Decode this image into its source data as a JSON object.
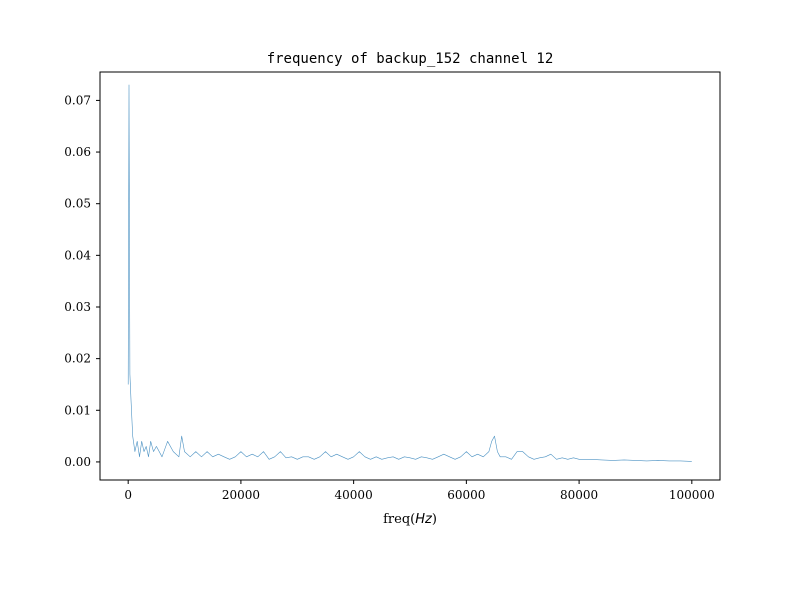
{
  "chart_data": {
    "type": "line",
    "title": "frequency of backup_152 channel 12",
    "xlabel": "freq(Hz)",
    "xlabel_parts": {
      "text": "freq",
      "math": "Hz"
    },
    "ylabel": "",
    "xlim": [
      -5000,
      105000
    ],
    "ylim": [
      -0.0035,
      0.0755
    ],
    "x_ticks": [
      0,
      20000,
      40000,
      60000,
      80000,
      100000
    ],
    "x_tick_labels": [
      "0",
      "20000",
      "40000",
      "60000",
      "80000",
      "100000"
    ],
    "y_ticks": [
      0.0,
      0.01,
      0.02,
      0.03,
      0.04,
      0.05,
      0.06,
      0.07
    ],
    "y_tick_labels": [
      "0.00",
      "0.01",
      "0.02",
      "0.03",
      "0.04",
      "0.05",
      "0.06",
      "0.07"
    ],
    "grid": false,
    "series": [
      {
        "color": "#1f77b4",
        "x": [
          0,
          150,
          300,
          500,
          800,
          1200,
          1600,
          2000,
          2400,
          2800,
          3200,
          3600,
          4000,
          4500,
          5000,
          6000,
          7000,
          8000,
          9000,
          9500,
          10000,
          11000,
          12000,
          13000,
          14000,
          15000,
          16000,
          17000,
          18000,
          19000,
          20000,
          21000,
          22000,
          23000,
          24000,
          25000,
          26000,
          27000,
          28000,
          29000,
          30000,
          31000,
          32000,
          33000,
          34000,
          35000,
          36000,
          37000,
          38000,
          39000,
          40000,
          41000,
          42000,
          43000,
          44000,
          45000,
          46000,
          47000,
          48000,
          49000,
          50000,
          51000,
          52000,
          53000,
          54000,
          55000,
          56000,
          57000,
          58000,
          59000,
          60000,
          61000,
          62000,
          63000,
          64000,
          64500,
          65000,
          65500,
          66000,
          67000,
          68000,
          69000,
          70000,
          71000,
          72000,
          73000,
          74000,
          75000,
          76000,
          77000,
          78000,
          79000,
          80000,
          82000,
          84000,
          86000,
          88000,
          90000,
          92000,
          94000,
          96000,
          98000,
          100000
        ],
        "values": [
          0.015,
          0.073,
          0.017,
          0.012,
          0.005,
          0.002,
          0.004,
          0.001,
          0.004,
          0.002,
          0.003,
          0.001,
          0.004,
          0.002,
          0.003,
          0.001,
          0.004,
          0.002,
          0.001,
          0.005,
          0.002,
          0.001,
          0.002,
          0.001,
          0.002,
          0.001,
          0.0015,
          0.001,
          0.0005,
          0.001,
          0.002,
          0.001,
          0.0015,
          0.001,
          0.002,
          0.0005,
          0.001,
          0.002,
          0.0008,
          0.001,
          0.0005,
          0.001,
          0.001,
          0.0005,
          0.001,
          0.002,
          0.001,
          0.0015,
          0.001,
          0.0005,
          0.001,
          0.002,
          0.001,
          0.0005,
          0.001,
          0.0005,
          0.0008,
          0.001,
          0.0005,
          0.001,
          0.0008,
          0.0005,
          0.001,
          0.0008,
          0.0005,
          0.001,
          0.0015,
          0.001,
          0.0005,
          0.001,
          0.002,
          0.001,
          0.0015,
          0.001,
          0.002,
          0.004,
          0.005,
          0.002,
          0.001,
          0.001,
          0.0005,
          0.002,
          0.002,
          0.001,
          0.0005,
          0.0008,
          0.001,
          0.0015,
          0.0005,
          0.0008,
          0.0005,
          0.0008,
          0.0005,
          0.0005,
          0.0004,
          0.0003,
          0.0004,
          0.0003,
          0.0002,
          0.0003,
          0.0002,
          0.0002,
          0.0001
        ]
      }
    ]
  }
}
